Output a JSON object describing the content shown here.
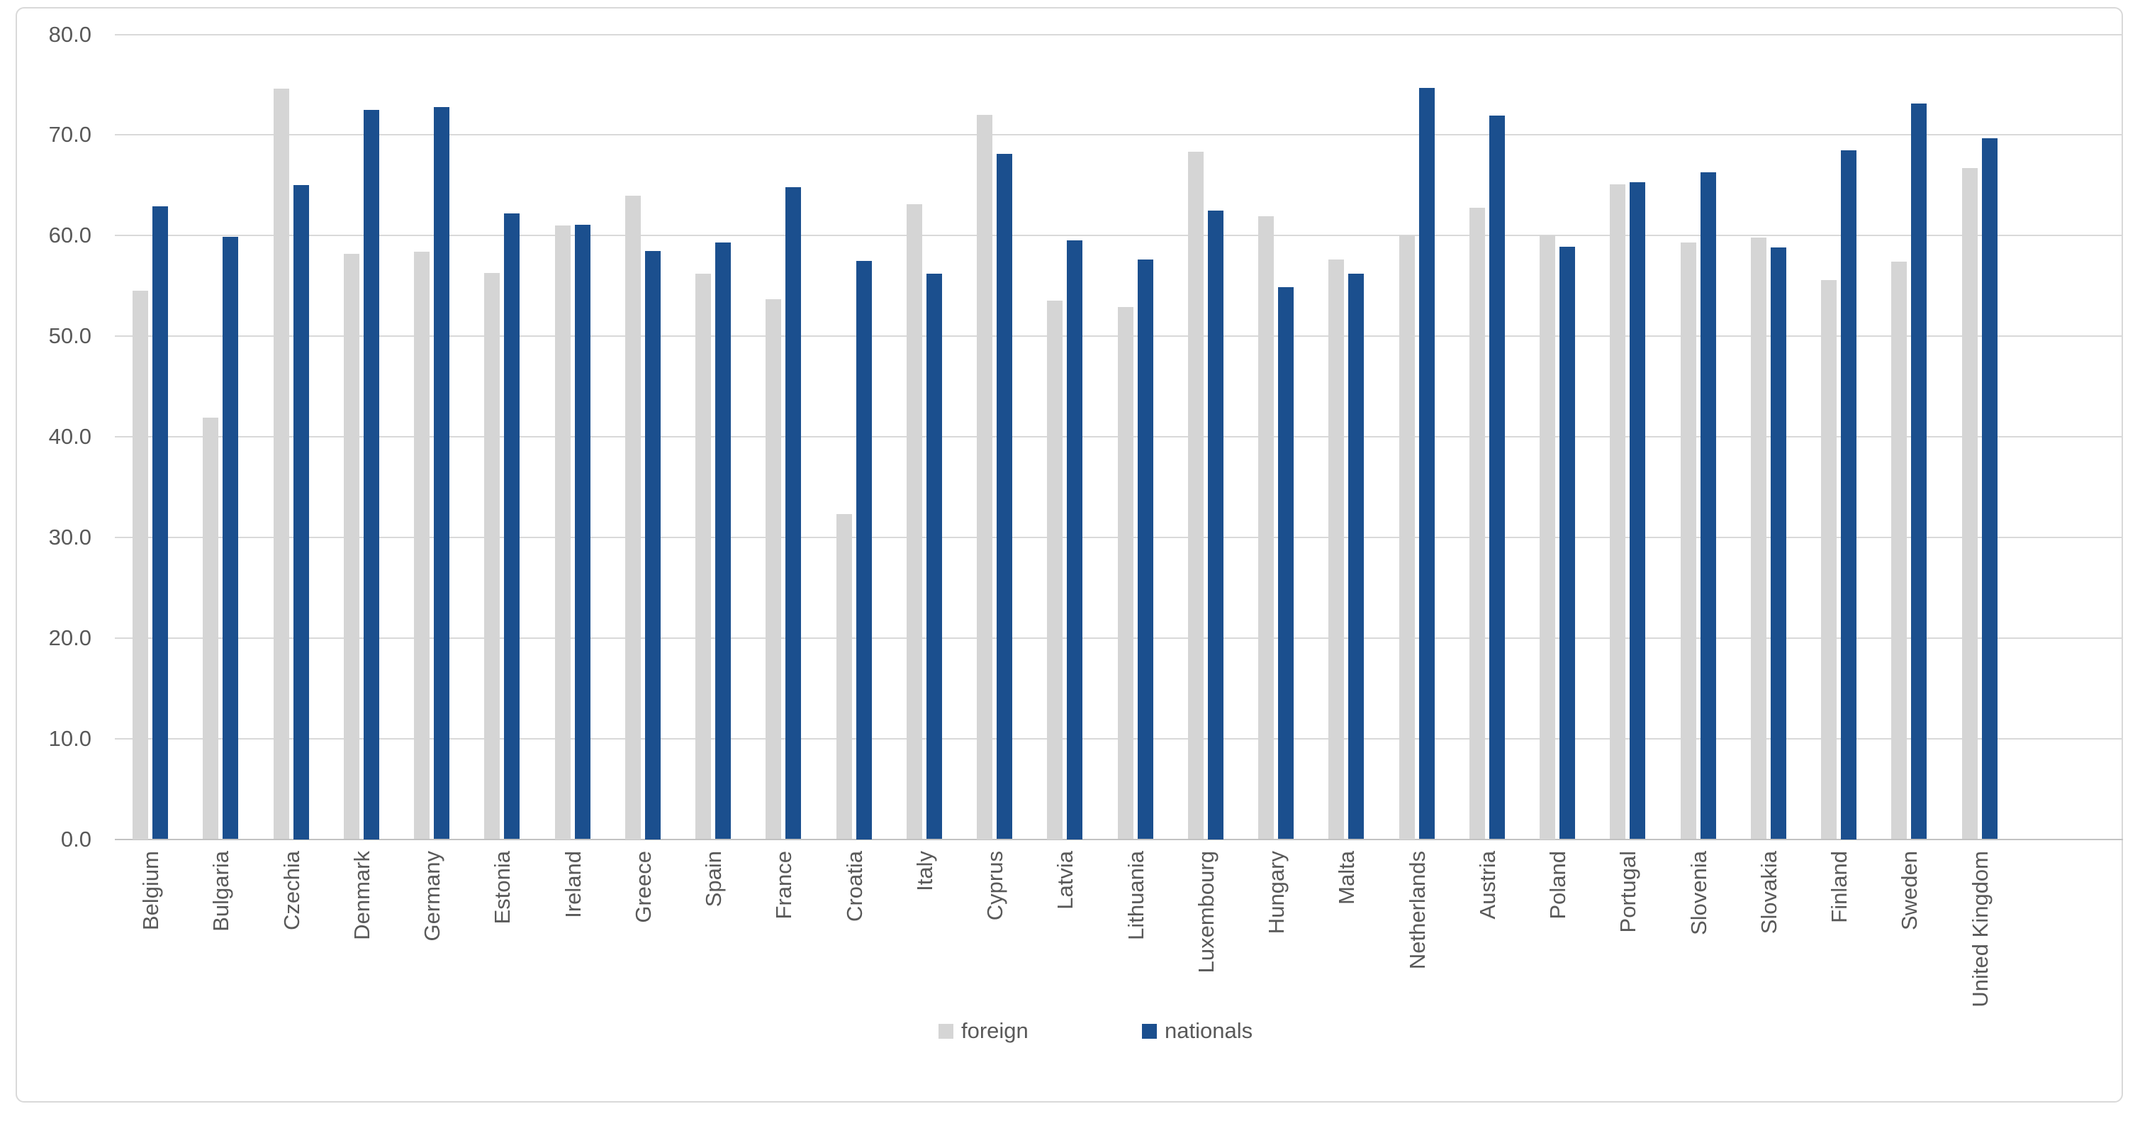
{
  "chart_data": {
    "type": "bar",
    "title": "",
    "xlabel": "",
    "ylabel": "",
    "categories": [
      "Belgium",
      "Bulgaria",
      "Czechia",
      "Denmark",
      "Germany",
      "Estonia",
      "Ireland",
      "Greece",
      "Spain",
      "France",
      "Croatia",
      "Italy",
      "Cyprus",
      "Latvia",
      "Lithuania",
      "Luxembourg",
      "Hungary",
      "Malta",
      "Netherlands",
      "Austria",
      "Poland",
      "Portugal",
      "Slovenia",
      "Slovakia",
      "Finland",
      "Sweden",
      "United Kingdom"
    ],
    "series": [
      {
        "name": "foreign",
        "color": "#d5d5d5",
        "values": [
          54.5,
          41.9,
          74.6,
          58.2,
          58.4,
          56.3,
          61.0,
          64.0,
          56.2,
          53.7,
          32.3,
          63.1,
          72.0,
          53.5,
          52.9,
          68.3,
          61.9,
          57.6,
          60.0,
          62.8,
          60.0,
          65.1,
          59.3,
          59.8,
          55.6,
          57.4,
          66.7
        ]
      },
      {
        "name": "nationals",
        "color": "#1b4f8e",
        "values": [
          62.9,
          59.9,
          65.0,
          72.5,
          72.8,
          62.2,
          61.1,
          58.5,
          59.3,
          64.8,
          57.5,
          56.2,
          68.1,
          59.5,
          57.6,
          62.5,
          54.9,
          56.2,
          74.7,
          71.9,
          58.9,
          65.3,
          66.3,
          58.8,
          68.5,
          73.1,
          69.7
        ]
      }
    ],
    "ylim": [
      0,
      80
    ],
    "ytick_step": 10,
    "ytick_labels": [
      "0.0",
      "10.0",
      "20.0",
      "30.0",
      "40.0",
      "50.0",
      "60.0",
      "70.0",
      "80.0"
    ],
    "grid": "horizontal",
    "legend_position": "bottom-center",
    "legend_labels": [
      "foreign",
      "nationals"
    ]
  },
  "colors": {
    "background": "#ffffff",
    "canvas_border": "#d9d9d9",
    "gridline": "#d9d9d9",
    "axis_baseline": "#c2c2c2",
    "tick_text": "#595959",
    "foreign_bar": "#d5d5d5",
    "nationals_bar": "#1b4f8e"
  }
}
